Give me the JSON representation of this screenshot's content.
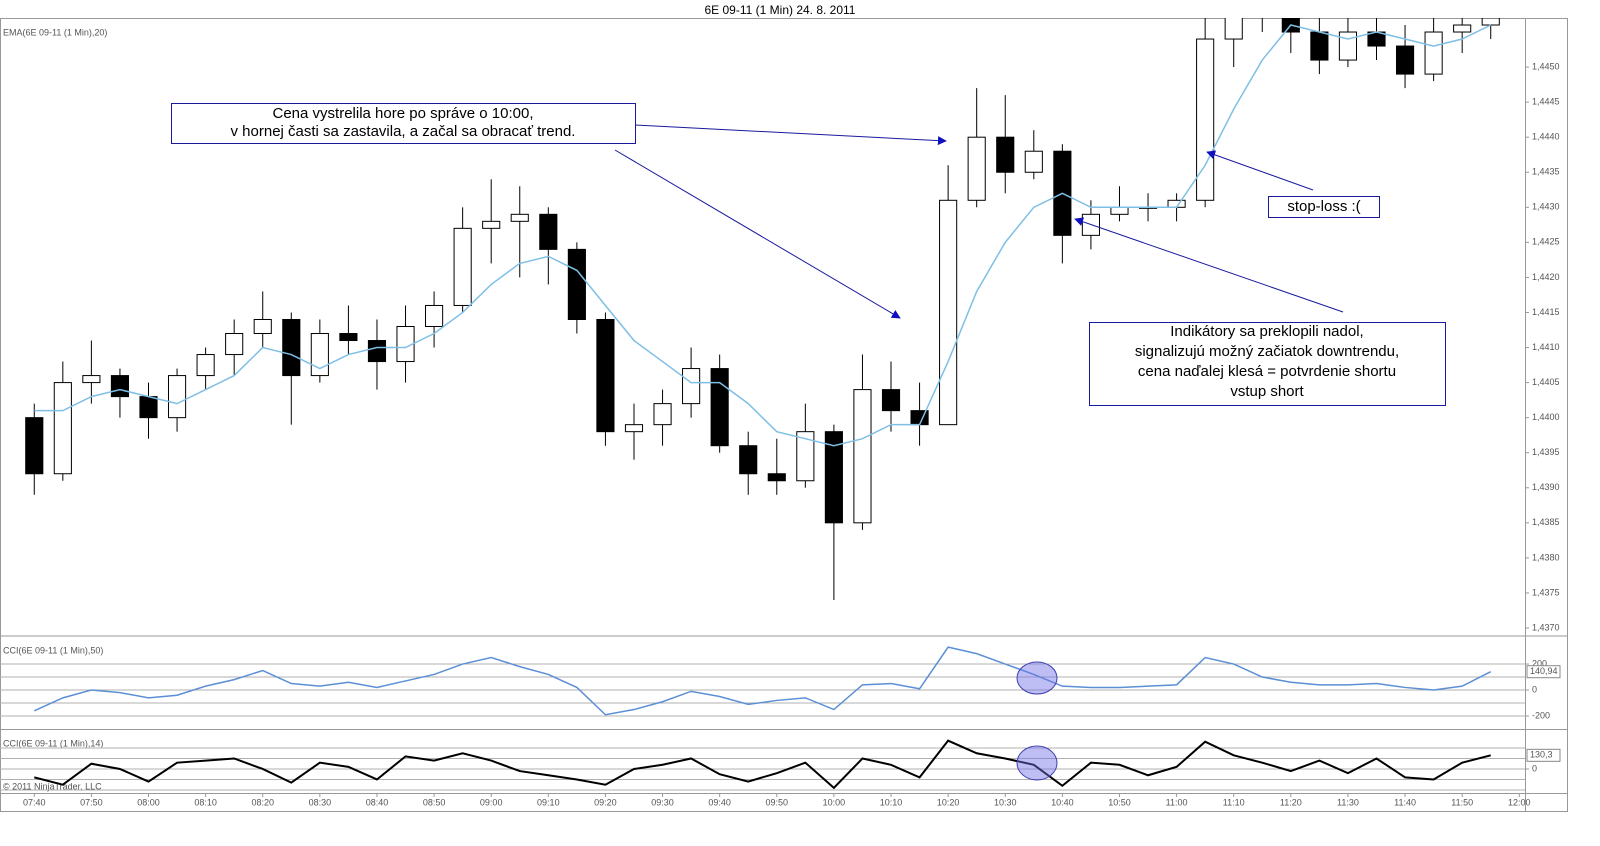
{
  "title": "6E 09-11 (1 Min)  24. 8. 2011",
  "footer": "© 2011 NinjaTrader, LLC",
  "annotations": [
    {
      "lines": [
        "Cena vystrelila hore po správe o 10:00,",
        "v hornej časti sa zastavila, a začal sa obracať trend."
      ]
    },
    {
      "lines": [
        "stop-loss   :("
      ]
    },
    {
      "lines": [
        "Indikátory sa preklopili nadol,",
        "signalizujú možný začiatok downtrendu,",
        "cena naďalej klesá = potvrdenie shortu",
        "vstup short"
      ]
    }
  ],
  "chart_data": [
    {
      "type": "candlestick",
      "title": "EMA(6E 09-11 (1 Min),20)",
      "x": [
        "07:40",
        "07:45",
        "07:50",
        "07:55",
        "08:00",
        "08:05",
        "08:10",
        "08:15",
        "08:20",
        "08:25",
        "08:30",
        "08:35",
        "08:40",
        "08:45",
        "08:50",
        "08:55",
        "09:00",
        "09:05",
        "09:10",
        "09:15",
        "09:20",
        "09:25",
        "09:30",
        "09:35",
        "09:40",
        "09:45",
        "09:50",
        "09:55",
        "10:00",
        "10:05",
        "10:10",
        "10:15",
        "10:20",
        "10:25",
        "10:30",
        "10:35",
        "10:40",
        "10:45",
        "10:50",
        "10:55",
        "11:00",
        "11:05",
        "11:10",
        "11:15",
        "11:20",
        "11:25",
        "11:30",
        "11:35",
        "11:40",
        "11:45",
        "11:50",
        "11:55"
      ],
      "xlim": [
        "07:34",
        "12:01"
      ],
      "open": [
        1.44,
        1.4392,
        1.4405,
        1.4406,
        1.4403,
        1.44,
        1.4406,
        1.4409,
        1.4412,
        1.4414,
        1.4406,
        1.4412,
        1.4411,
        1.4408,
        1.4413,
        1.4416,
        1.4427,
        1.4428,
        1.4429,
        1.4424,
        1.4414,
        1.4398,
        1.4399,
        1.4402,
        1.4407,
        1.4396,
        1.4392,
        1.4391,
        1.4398,
        1.4385,
        1.4404,
        1.4401,
        1.4399,
        1.4431,
        1.444,
        1.4435,
        1.4438,
        1.4426,
        1.4429,
        1.443,
        1.443,
        1.4431,
        1.4454,
        1.4458,
        1.4458,
        1.4455,
        1.4451,
        1.4455,
        1.4453,
        1.4449,
        1.4455,
        1.4456
      ],
      "high": [
        1.4402,
        1.4408,
        1.4411,
        1.4407,
        1.4405,
        1.4407,
        1.441,
        1.4414,
        1.4418,
        1.4415,
        1.4414,
        1.4416,
        1.4414,
        1.4416,
        1.4418,
        1.443,
        1.4434,
        1.4433,
        1.443,
        1.4425,
        1.4415,
        1.4402,
        1.4404,
        1.441,
        1.4409,
        1.4398,
        1.4397,
        1.4402,
        1.4399,
        1.4409,
        1.4408,
        1.4405,
        1.4436,
        1.4447,
        1.4446,
        1.4441,
        1.4439,
        1.4431,
        1.4433,
        1.4432,
        1.4432,
        1.4457,
        1.446,
        1.4462,
        1.446,
        1.4458,
        1.4457,
        1.4458,
        1.4456,
        1.4458,
        1.4458,
        1.4458
      ],
      "low": [
        1.4389,
        1.4391,
        1.4402,
        1.44,
        1.4397,
        1.4398,
        1.4404,
        1.4406,
        1.441,
        1.4399,
        1.4405,
        1.4409,
        1.4404,
        1.4405,
        1.441,
        1.4415,
        1.4422,
        1.442,
        1.4419,
        1.4412,
        1.4396,
        1.4394,
        1.4396,
        1.44,
        1.4395,
        1.4389,
        1.4389,
        1.439,
        1.4374,
        1.4384,
        1.4398,
        1.4396,
        1.4399,
        1.443,
        1.4432,
        1.4434,
        1.4422,
        1.4424,
        1.4428,
        1.4428,
        1.4428,
        1.443,
        1.445,
        1.4455,
        1.4452,
        1.4449,
        1.445,
        1.4451,
        1.4447,
        1.4448,
        1.4452,
        1.4454
      ],
      "close": [
        1.4392,
        1.4405,
        1.4406,
        1.4403,
        1.44,
        1.4406,
        1.4409,
        1.4412,
        1.4414,
        1.4406,
        1.4412,
        1.4411,
        1.4408,
        1.4413,
        1.4416,
        1.4427,
        1.4428,
        1.4429,
        1.4424,
        1.4414,
        1.4398,
        1.4399,
        1.4402,
        1.4407,
        1.4396,
        1.4392,
        1.4391,
        1.4398,
        1.4385,
        1.4404,
        1.4401,
        1.4399,
        1.4431,
        1.444,
        1.4435,
        1.4438,
        1.4426,
        1.4429,
        1.443,
        1.443,
        1.4431,
        1.4454,
        1.4458,
        1.4458,
        1.4455,
        1.4451,
        1.4455,
        1.4453,
        1.4449,
        1.4455,
        1.4456,
        1.4457
      ],
      "series": [
        {
          "name": "EMA",
          "color": "#7fbfe6",
          "values": [
            1.4401,
            1.4401,
            1.4403,
            1.4404,
            1.4403,
            1.4402,
            1.4404,
            1.4406,
            1.441,
            1.4409,
            1.4407,
            1.4409,
            1.441,
            1.441,
            1.4412,
            1.4415,
            1.4419,
            1.4422,
            1.4423,
            1.4421,
            1.4416,
            1.4411,
            1.4408,
            1.4405,
            1.4405,
            1.4402,
            1.4398,
            1.4397,
            1.4396,
            1.4397,
            1.4399,
            1.4399,
            1.4408,
            1.4418,
            1.4425,
            1.443,
            1.4432,
            1.443,
            1.443,
            1.443,
            1.443,
            1.4436,
            1.4444,
            1.4451,
            1.4456,
            1.4455,
            1.4454,
            1.4455,
            1.4454,
            1.4453,
            1.4454,
            1.4456
          ]
        }
      ],
      "ylim": [
        1.4369,
        1.4457
      ],
      "yticks": [
        {
          "value": 1.437,
          "label": "1,4370"
        },
        {
          "value": 1.4375,
          "label": "1,4375"
        },
        {
          "value": 1.438,
          "label": "1,4380"
        },
        {
          "value": 1.4385,
          "label": "1,4385"
        },
        {
          "value": 1.439,
          "label": "1,4390"
        },
        {
          "value": 1.4395,
          "label": "1,4395"
        },
        {
          "value": 1.44,
          "label": "1,4400"
        },
        {
          "value": 1.4405,
          "label": "1,4405"
        },
        {
          "value": 1.441,
          "label": "1,4410"
        },
        {
          "value": 1.4415,
          "label": "1,4415"
        },
        {
          "value": 1.442,
          "label": "1,4420"
        },
        {
          "value": 1.4425,
          "label": "1,4425"
        },
        {
          "value": 1.443,
          "label": "1,4430"
        },
        {
          "value": 1.4435,
          "label": "1,4435"
        },
        {
          "value": 1.444,
          "label": "1,4440"
        },
        {
          "value": 1.4445,
          "label": "1,4445"
        },
        {
          "value": 1.445,
          "label": "1,4450"
        }
      ]
    },
    {
      "type": "line",
      "title": "CCI(6E 09-11 (1 Min),50)",
      "series": [
        {
          "name": "CCI50",
          "color": "#5b8fd6",
          "values": [
            -160,
            -60,
            0,
            -20,
            -60,
            -40,
            30,
            80,
            150,
            50,
            30,
            60,
            20,
            70,
            120,
            200,
            250,
            180,
            120,
            20,
            -190,
            -150,
            -90,
            -10,
            -50,
            -110,
            -80,
            -60,
            -150,
            40,
            50,
            10,
            330,
            280,
            200,
            120,
            30,
            20,
            20,
            30,
            40,
            250,
            200,
            100,
            60,
            40,
            40,
            50,
            20,
            0,
            30,
            140.94
          ],
          "last_label": "140,94"
        }
      ],
      "ylim": [
        -292,
        408
      ],
      "yticks": [
        -200,
        0,
        200
      ],
      "grid_values": [
        -200,
        -100,
        0,
        100,
        200
      ]
    },
    {
      "type": "line",
      "title": "CCI(6E 09-11 (1 Min),14)",
      "series": [
        {
          "name": "CCI14",
          "color": "#000000",
          "values": [
            -80,
            -150,
            50,
            0,
            -120,
            60,
            80,
            100,
            0,
            -130,
            60,
            20,
            -100,
            120,
            80,
            150,
            80,
            -20,
            -60,
            -100,
            -150,
            0,
            40,
            100,
            -50,
            -120,
            -40,
            60,
            -180,
            100,
            40,
            -80,
            270,
            150,
            100,
            40,
            -160,
            60,
            40,
            -60,
            20,
            260,
            130,
            60,
            -20,
            80,
            -40,
            100,
            -80,
            -100,
            60,
            130.3
          ],
          "last_label": "130,3"
        }
      ],
      "ylim": [
        -229,
        362
      ],
      "yticks": [
        0
      ],
      "grid_values": [
        -200,
        -100,
        0,
        100,
        200
      ],
      "xticks": [
        "07:40",
        "07:50",
        "08:00",
        "08:10",
        "08:20",
        "08:30",
        "08:40",
        "08:50",
        "09:00",
        "09:10",
        "09:20",
        "09:30",
        "09:40",
        "09:50",
        "10:00",
        "10:10",
        "10:20",
        "10:30",
        "10:40",
        "10:50",
        "11:00",
        "11:10",
        "11:20",
        "11:30",
        "11:40",
        "11:50",
        "12:00"
      ]
    }
  ]
}
